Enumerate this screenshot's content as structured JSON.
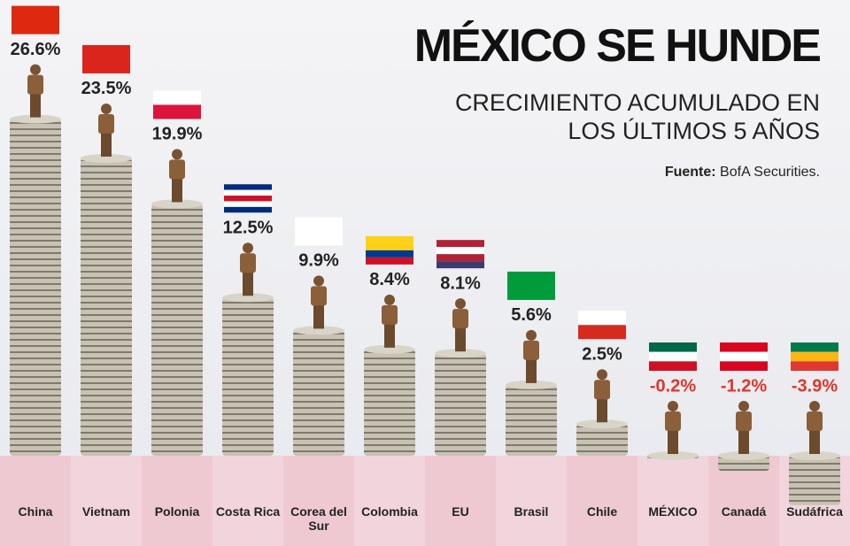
{
  "chart_data": {
    "type": "bar",
    "title": "MÉXICO SE HUNDE",
    "subtitle": "CRECIMIENTO ACUMULADO EN LOS ÚLTIMOS 5 AÑOS",
    "source_label": "Fuente:",
    "source": "BofA Securities.",
    "categories": [
      "China",
      "Vietnam",
      "Polonia",
      "Costa Rica",
      "Corea del Sur",
      "Colombia",
      "EU",
      "Brasil",
      "Chile",
      "MÉXICO",
      "Canadá",
      "Sudáfrica"
    ],
    "values": [
      26.6,
      23.5,
      19.9,
      12.5,
      9.9,
      8.4,
      8.1,
      5.6,
      2.5,
      -0.2,
      -1.2,
      -3.9
    ],
    "value_labels": [
      "26.6%",
      "23.5%",
      "19.9%",
      "12.5%",
      "9.9%",
      "8.4%",
      "8.1%",
      "5.6%",
      "2.5%",
      "-0.2%",
      "-1.2%",
      "-3.9%"
    ],
    "color": "#b9b4a6",
    "negative_label_color": "#e0352b"
  }
}
